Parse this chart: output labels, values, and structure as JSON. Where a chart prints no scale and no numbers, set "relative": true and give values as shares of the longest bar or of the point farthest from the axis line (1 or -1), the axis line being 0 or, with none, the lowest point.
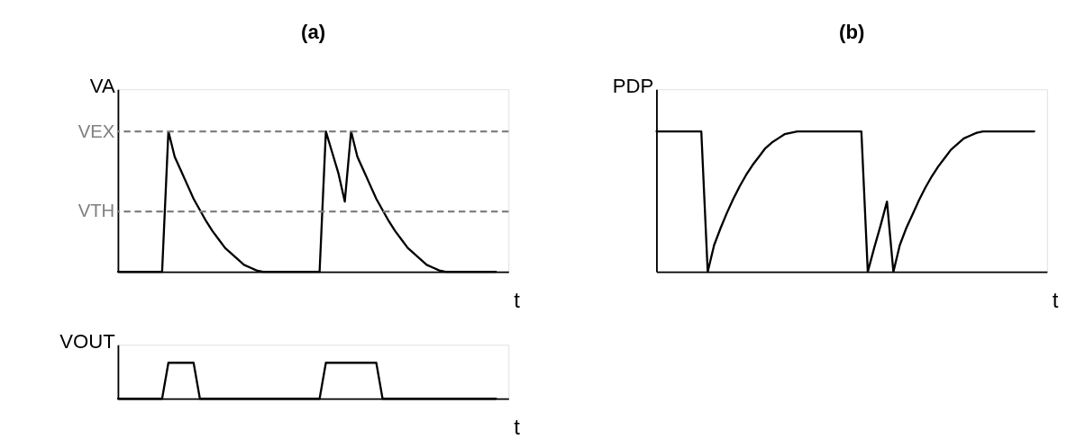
{
  "chart_data": [
    {
      "type": "line",
      "title": "(a)",
      "ylabel": "VA",
      "xlabel": "t",
      "relative": true,
      "color": "#000000",
      "categories": [
        null,
        null,
        null,
        null,
        null,
        null,
        null,
        null,
        null,
        null,
        null,
        null,
        null,
        null,
        null,
        null,
        null,
        null,
        null,
        null,
        null,
        null,
        null,
        null,
        null,
        null,
        null,
        null,
        null,
        null,
        null,
        null,
        null,
        null,
        null,
        null,
        null,
        null,
        null,
        null,
        null,
        null,
        null,
        null,
        null,
        null,
        null,
        null,
        null,
        null,
        null,
        null,
        null,
        null,
        null,
        null,
        null,
        null,
        null,
        null,
        null
      ],
      "values": [
        0,
        0,
        0,
        0,
        0,
        0,
        0,
        0,
        1,
        0.82,
        0.72,
        0.62,
        0.52,
        0.44,
        0.36,
        0.29,
        0.23,
        0.17,
        0.13,
        0.09,
        0.05,
        0.03,
        0.01,
        0,
        0,
        0,
        0,
        0,
        0,
        0,
        0,
        0,
        0,
        1,
        0.85,
        0.7,
        0.5,
        1,
        0.82,
        0.72,
        0.62,
        0.52,
        0.44,
        0.36,
        0.29,
        0.23,
        0.17,
        0.13,
        0.09,
        0.05,
        0.03,
        0.01,
        0,
        0,
        0,
        0,
        0,
        0,
        0,
        0,
        0
      ],
      "ref_lines": [
        {
          "axis": "y",
          "value": 1,
          "label": "VEX",
          "color": "#808080",
          "line_style": "dashed"
        },
        {
          "axis": "y",
          "value": 0.43,
          "label": "VTH",
          "color": "#808080",
          "line_style": "dashed"
        }
      ]
    },
    {
      "type": "line",
      "ylabel": "VOUT",
      "xlabel": "t",
      "relative": true,
      "color": "#000000",
      "categories": [
        null,
        null,
        null,
        null,
        null,
        null,
        null,
        null,
        null,
        null,
        null,
        null,
        null,
        null,
        null,
        null,
        null,
        null,
        null,
        null,
        null,
        null,
        null,
        null,
        null,
        null,
        null,
        null,
        null,
        null,
        null,
        null,
        null,
        null,
        null,
        null,
        null,
        null,
        null,
        null,
        null,
        null,
        null,
        null,
        null,
        null,
        null,
        null,
        null,
        null,
        null,
        null,
        null,
        null,
        null,
        null,
        null,
        null,
        null,
        null,
        null
      ],
      "values": [
        0,
        0,
        0,
        0,
        0,
        0,
        0,
        0,
        1,
        1,
        1,
        1,
        1,
        0,
        0,
        0,
        0,
        0,
        0,
        0,
        0,
        0,
        0,
        0,
        0,
        0,
        0,
        0,
        0,
        0,
        0,
        0,
        0,
        1,
        1,
        1,
        1,
        1,
        1,
        1,
        1,
        1,
        0,
        0,
        0,
        0,
        0,
        0,
        0,
        0,
        0,
        0,
        0,
        0,
        0,
        0,
        0,
        0,
        0,
        0,
        0
      ]
    },
    {
      "type": "line",
      "title": "(b)",
      "ylabel": "PDP",
      "xlabel": "t",
      "relative": true,
      "color": "#000000",
      "categories": [
        null,
        null,
        null,
        null,
        null,
        null,
        null,
        null,
        null,
        null,
        null,
        null,
        null,
        null,
        null,
        null,
        null,
        null,
        null,
        null,
        null,
        null,
        null,
        null,
        null,
        null,
        null,
        null,
        null,
        null,
        null,
        null,
        null,
        null,
        null,
        null,
        null,
        null,
        null,
        null,
        null,
        null,
        null,
        null,
        null,
        null,
        null,
        null,
        null,
        null,
        null,
        null,
        null,
        null,
        null,
        null,
        null,
        null,
        null,
        null
      ],
      "values": [
        1,
        1,
        1,
        1,
        1,
        1,
        1,
        1,
        0,
        0.19,
        0.31,
        0.42,
        0.52,
        0.61,
        0.69,
        0.76,
        0.82,
        0.88,
        0.92,
        0.95,
        0.98,
        0.99,
        1,
        1,
        1,
        1,
        1,
        1,
        1,
        1,
        1,
        1,
        1,
        0,
        0.17,
        0.33,
        0.5,
        0,
        0.19,
        0.31,
        0.41,
        0.51,
        0.6,
        0.68,
        0.75,
        0.81,
        0.87,
        0.91,
        0.95,
        0.97,
        0.99,
        1,
        1,
        1,
        1,
        1,
        1,
        1,
        1,
        1
      ]
    }
  ]
}
